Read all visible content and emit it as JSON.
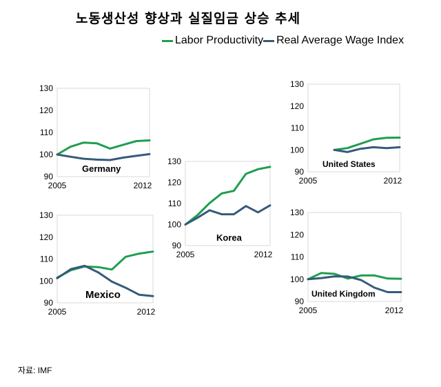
{
  "title": "노동생산성 향상과 실질임금 상승 추세",
  "source": "자료: IMF",
  "legend": {
    "labor": "Labor Productivity",
    "wage": "Real Average Wage Index"
  },
  "colors": {
    "labor": "#1e9e4e",
    "wage": "#355a7a",
    "frame": "#d9d9d9"
  },
  "chart_data": [
    {
      "type": "line",
      "title": "Germany",
      "x_ticks": [
        "2005",
        "2012"
      ],
      "y_ticks": [
        90,
        100,
        110,
        120,
        130
      ],
      "ylim": [
        90,
        130
      ],
      "x": [
        2005,
        2006,
        2007,
        2008,
        2009,
        2010,
        2011,
        2012
      ],
      "series": [
        {
          "name": "Labor Productivity",
          "values": [
            100,
            103.5,
            105.4,
            105.1,
            102.7,
            104.4,
            106.1,
            106.4
          ]
        },
        {
          "name": "Real Average Wage Index",
          "values": [
            100,
            99,
            98.1,
            97.7,
            97.5,
            98.6,
            99.4,
            100.2
          ]
        }
      ]
    },
    {
      "type": "line",
      "title": "Korea",
      "x_ticks": [
        "2005",
        "2012"
      ],
      "y_ticks": [
        90,
        100,
        110,
        120,
        130
      ],
      "ylim": [
        90,
        130
      ],
      "x": [
        2005,
        2006,
        2007,
        2008,
        2009,
        2010,
        2011,
        2012
      ],
      "series": [
        {
          "name": "Labor Productivity",
          "values": [
            100,
            104.5,
            110.2,
            114.8,
            116,
            124.1,
            126.3,
            127.4
          ]
        },
        {
          "name": "Real Average Wage Index",
          "values": [
            100,
            103.2,
            106.8,
            104.9,
            104.9,
            108.8,
            105.8,
            109.1
          ]
        }
      ]
    },
    {
      "type": "line",
      "title": "United States",
      "x_ticks": [
        "2005",
        "2012"
      ],
      "y_ticks": [
        90,
        100,
        110,
        120,
        130
      ],
      "ylim": [
        90,
        130
      ],
      "x": [
        2007,
        2008,
        2009,
        2010,
        2011,
        2012
      ],
      "series": [
        {
          "name": "Labor Productivity",
          "values": [
            100,
            100.8,
            102.8,
            104.8,
            105.5,
            105.6
          ]
        },
        {
          "name": "Real Average Wage Index",
          "values": [
            100,
            99,
            100.5,
            101.2,
            100.8,
            101.2
          ]
        }
      ]
    },
    {
      "type": "line",
      "title": "Mexico",
      "x_ticks": [
        "2005",
        "2012"
      ],
      "y_ticks": [
        90,
        100,
        110,
        120,
        130
      ],
      "ylim": [
        90,
        130
      ],
      "x": [
        2005,
        2006,
        2007,
        2008,
        2009,
        2010,
        2011,
        2012
      ],
      "series": [
        {
          "name": "Labor Productivity",
          "values": [
            101.5,
            104.9,
            106.6,
            106.3,
            105.2,
            111,
            112.5,
            113.4
          ]
        },
        {
          "name": "Real Average Wage Index",
          "values": [
            101.2,
            105.4,
            106.9,
            103.9,
            99.7,
            96.9,
            93.7,
            93.1
          ]
        }
      ]
    },
    {
      "type": "line",
      "title": "United Kingdom",
      "x_ticks": [
        "2005",
        "2012"
      ],
      "y_ticks": [
        90,
        100,
        110,
        120,
        130
      ],
      "ylim": [
        90,
        130
      ],
      "x": [
        2005,
        2006,
        2007,
        2008,
        2009,
        2010,
        2011,
        2012
      ],
      "series": [
        {
          "name": "Labor Productivity",
          "values": [
            100,
            102.8,
            102.4,
            100.3,
            101.7,
            101.7,
            100.3,
            100.2
          ]
        },
        {
          "name": "Real Average Wage Index",
          "values": [
            100,
            100.5,
            101.3,
            101.2,
            99.6,
            96.2,
            94.2,
            94.2
          ]
        }
      ]
    }
  ]
}
